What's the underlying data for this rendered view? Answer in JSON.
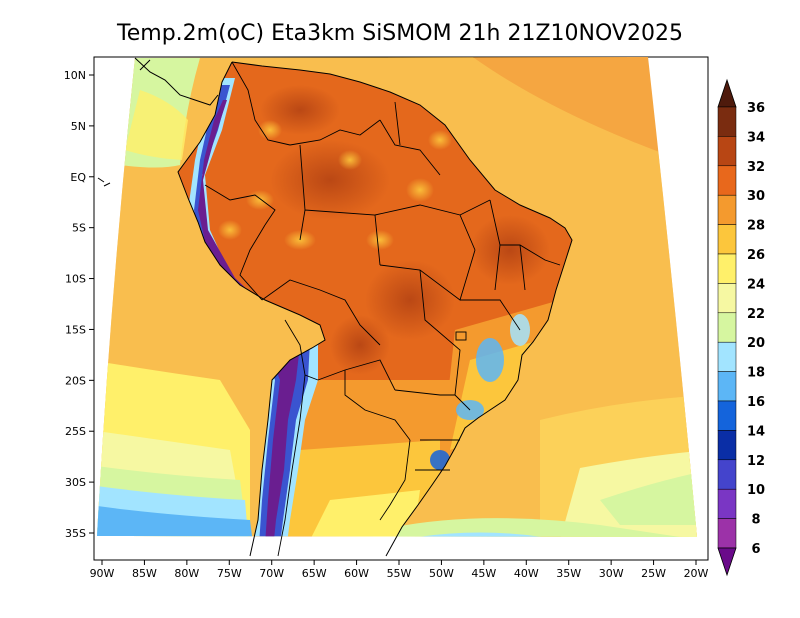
{
  "map": {
    "title": "Temp.2m(oC) Eta3km SiSMOM 21h 21Z10NOV2025",
    "lon_ticks": [
      "90W",
      "85W",
      "80W",
      "75W",
      "70W",
      "65W",
      "60W",
      "55W",
      "50W",
      "45W",
      "40W",
      "35W",
      "30W",
      "25W",
      "20W"
    ],
    "lat_ticks": [
      "10N",
      "5N",
      "EQ",
      "5S",
      "10S",
      "15S",
      "20S",
      "25S",
      "30S",
      "35S"
    ]
  },
  "colorbar": {
    "labels": [
      "36",
      "34",
      "32",
      "30",
      "28",
      "26",
      "24",
      "22",
      "20",
      "18",
      "16",
      "14",
      "12",
      "10",
      "8",
      "6"
    ],
    "colors": [
      "#4e1a0c",
      "#7a2c10",
      "#b84614",
      "#e8681c",
      "#f49a2e",
      "#fcc63c",
      "#fff06a",
      "#f6f8a2",
      "#d6f6a0",
      "#a2e4ff",
      "#5cb6f6",
      "#1464dc",
      "#0a2ea6",
      "#4444cc",
      "#7a36c4",
      "#9c32a8",
      "#6a0a8a"
    ],
    "colors_note": "17 bands from >36 (top) to <6 (bottom)"
  },
  "colors": {
    "ocean_warm": "#f5a641",
    "ocean_mid": "#fcd159",
    "ocean_cool": "#d2f2a0",
    "land_hot": "#e4681c",
    "land_very_hot": "#b84614",
    "andes_cold": "#3a54d0",
    "andes_very_cold": "#6a1e90",
    "border": "#000000"
  }
}
